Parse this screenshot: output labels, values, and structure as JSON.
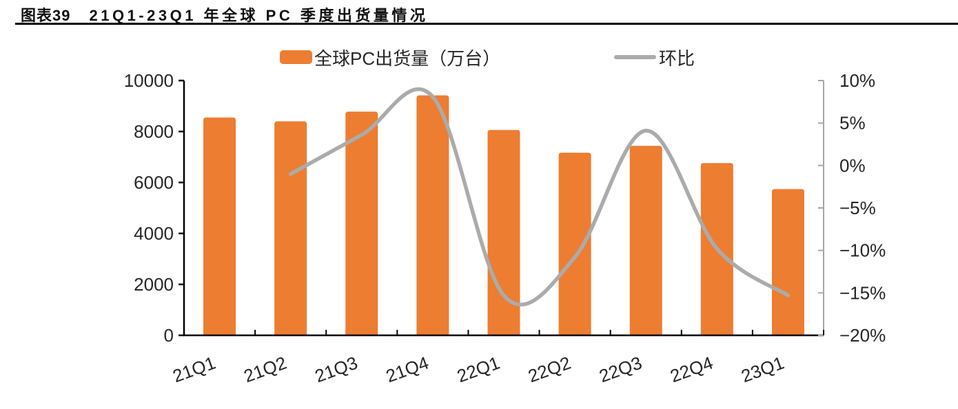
{
  "header": {
    "figure_label": "图表39",
    "title": "21Q1-23Q1 年全球 PC 季度出货量情况"
  },
  "legend": {
    "bar": {
      "label": "全球PC出货量（万台）",
      "color": "#ED7D31"
    },
    "line": {
      "label": "环比",
      "color": "#ABABAB"
    }
  },
  "colors": {
    "bar_fill": "#ED7D31",
    "trend_line": "#ABABAB",
    "axis_black": "#000000",
    "axis_gray": "#A6A6A6",
    "tick_text": "#262626",
    "title_text": "#111111"
  },
  "chart_data": {
    "type": "bar",
    "subtype": "bar-with-line-overlay",
    "title": "21Q1-23Q1 年全球 PC 季度出货量情况",
    "categories": [
      "21Q1",
      "21Q2",
      "21Q3",
      "21Q4",
      "22Q1",
      "22Q2",
      "22Q3",
      "22Q4",
      "23Q1"
    ],
    "series": [
      {
        "name": "全球PC出货量（万台）",
        "type": "bar",
        "axis": "left",
        "color": "#ED7D31",
        "values": [
          8550,
          8400,
          8780,
          9420,
          8060,
          7170,
          7440,
          6760,
          5740
        ]
      },
      {
        "name": "环比",
        "type": "line",
        "axis": "right",
        "color": "#ABABAB",
        "unit": "%",
        "values": [
          null,
          -1.0,
          3.6,
          8.1,
          -15.3,
          -10.8,
          4.1,
          -9.8,
          -15.3
        ]
      }
    ],
    "left_axis": {
      "min": 0,
      "max": 10000,
      "step": 2000,
      "tick_labels": [
        "0",
        "2000",
        "4000",
        "6000",
        "8000",
        "10000"
      ]
    },
    "right_axis": {
      "min": -20,
      "max": 10,
      "step": 5,
      "tick_labels": [
        "−20%",
        "−15%",
        "−10%",
        "−5%",
        "0%",
        "5%",
        "10%"
      ]
    },
    "grid": false,
    "legend_position": "top",
    "x_label_rotation_deg": -20
  }
}
